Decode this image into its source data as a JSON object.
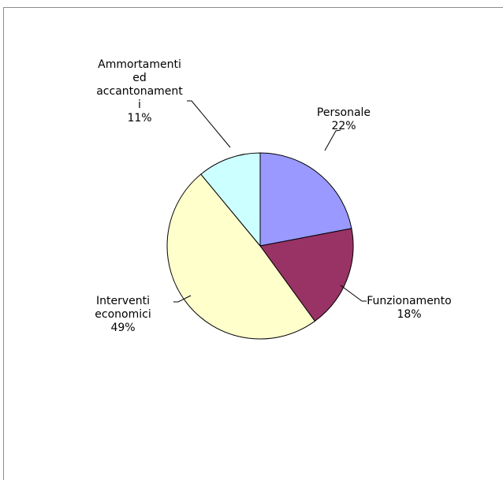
{
  "chart_data": {
    "type": "pie",
    "title": "",
    "legend": "none",
    "start_angle_deg": 0,
    "direction": "clockwise",
    "slices": [
      {
        "label_lines": [
          "Personale",
          "22%"
        ],
        "label": "Personale",
        "percent_label": "22%",
        "value": 22,
        "color": "#9999ff"
      },
      {
        "label_lines": [
          "Funzionamento",
          "18%"
        ],
        "label": "Funzionamento",
        "percent_label": "18%",
        "value": 18,
        "color": "#993366"
      },
      {
        "label_lines": [
          "Interventi",
          "economici",
          "49%"
        ],
        "label": "Interventi economici",
        "percent_label": "49%",
        "value": 49,
        "color": "#ffffcc"
      },
      {
        "label_lines": [
          "Ammortamenti",
          "ed",
          "accantonament",
          "i",
          "11%"
        ],
        "label": "Ammortamenti ed accantonamenti",
        "percent_label": "11%",
        "value": 11,
        "color": "#ccffff"
      }
    ]
  }
}
